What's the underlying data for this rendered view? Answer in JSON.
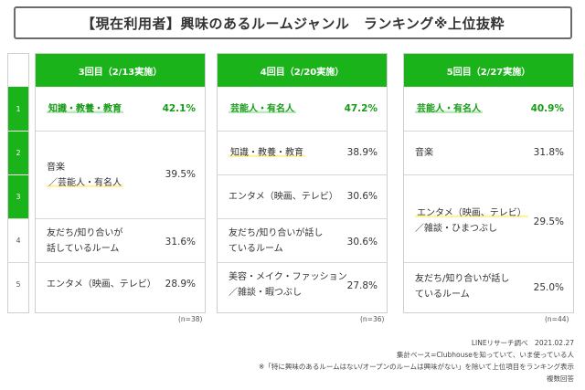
{
  "title": "【現在利用者】興味のあるルームジャンル　ランキング※上位抜粋",
  "ranks": [
    "1",
    "2",
    "3",
    "4",
    "5"
  ],
  "chart_data": {
    "type": "table",
    "columns": [
      {
        "header": "3回目（2/13実施）",
        "n": "(n=38)",
        "rows": [
          {
            "rank": "1",
            "label": "知識・教養・教育",
            "value": "42.1%"
          },
          {
            "rank": "2-3",
            "label_lines": [
              "音楽",
              "／芸能人・有名人"
            ],
            "value": "39.5%"
          },
          {
            "rank": "4",
            "label_lines": [
              "友だち/知り合いが",
              "話しているルーム"
            ],
            "value": "31.6%"
          },
          {
            "rank": "5",
            "label": "エンタメ（映画、テレビ）",
            "value": "28.9%"
          }
        ]
      },
      {
        "header": "4回目（2/20実施）",
        "n": "(n=36)",
        "rows": [
          {
            "rank": "1",
            "label": "芸能人・有名人",
            "value": "47.2%"
          },
          {
            "rank": "2",
            "label": "知識・教養・教育",
            "value": "38.9%"
          },
          {
            "rank": "3",
            "label": "エンタメ（映画、テレビ）",
            "value": "30.6%"
          },
          {
            "rank": "4",
            "label_lines": [
              "友だち/知り合いが話し",
              "ているルーム"
            ],
            "value": "30.6%"
          },
          {
            "rank": "5",
            "label_lines": [
              "美容・メイク・ファッション",
              "／雑談・暇つぶし"
            ],
            "value": "27.8%"
          }
        ]
      },
      {
        "header": "5回目（2/27実施）",
        "n": "(n=44)",
        "rows": [
          {
            "rank": "1",
            "label": "芸能人・有名人",
            "value": "40.9%"
          },
          {
            "rank": "2",
            "label": "音楽",
            "value": "31.8%"
          },
          {
            "rank": "3-4",
            "label_lines": [
              "エンタメ（映画、テレビ）",
              "／雑談・ひまつぶし"
            ],
            "value": "29.5%"
          },
          {
            "rank": "5",
            "label_lines": [
              "友だち/知り合いが話し",
              "ているルーム"
            ],
            "value": "25.0%"
          }
        ]
      }
    ]
  },
  "footer": {
    "line1": "LINEリサーチ調べ　2021.02.27",
    "line2": "集計ベース=Clubhouseを知っていて、いま使っている人",
    "line3": "※「特に興味のあるルームはない/オープンのルームは興味がない」を除いて上位項目をランキング表示",
    "line4": "複数回答"
  },
  "colors": {
    "accent_green": "#1ab31a",
    "highlight_yellow": "#fff3a0",
    "highlight_green": "#b9eab9"
  }
}
